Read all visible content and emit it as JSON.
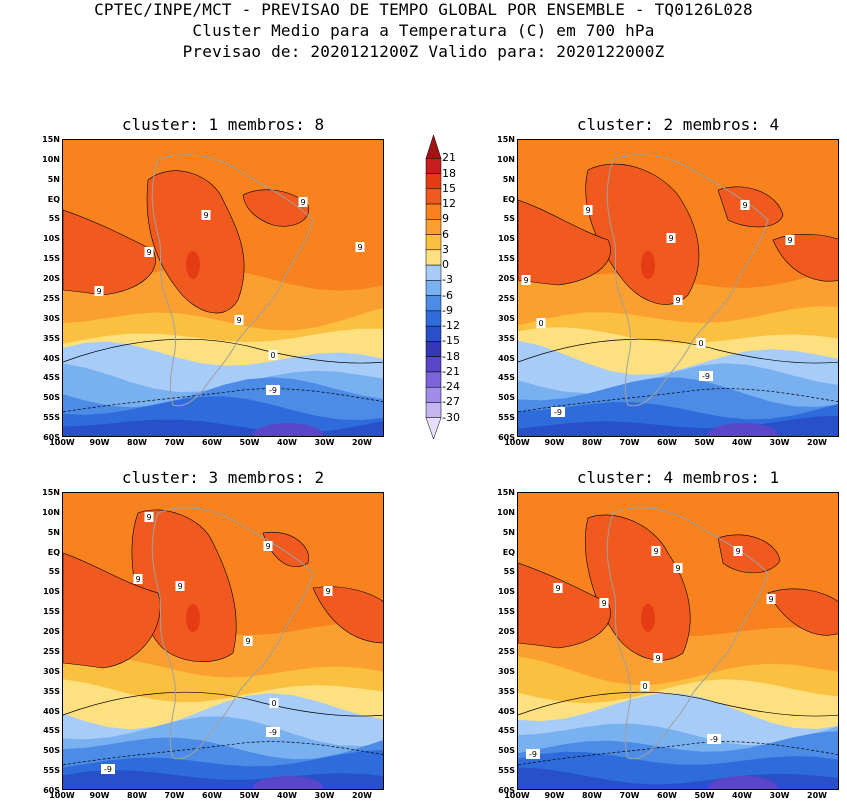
{
  "header": {
    "line1": "CPTEC/INPE/MCT - PREVISAO DE TEMPO GLOBAL POR ENSEMBLE - TQ0126L028",
    "line2": "Cluster Medio para a Temperatura (C) em 700 hPa",
    "line3": "Previsao de: 2020121200Z   Valido para: 2020122000Z"
  },
  "panels": [
    {
      "title": "cluster: 1  membros: 8",
      "contour_labels": [
        "9",
        "9",
        "9",
        "9",
        "9",
        "9",
        "0",
        "-9"
      ]
    },
    {
      "title": "cluster: 2  membros: 4",
      "contour_labels": [
        "9",
        "9",
        "9",
        "9",
        "9",
        "9",
        "0",
        "0",
        "-9",
        "-9"
      ]
    },
    {
      "title": "cluster: 3  membros: 2",
      "contour_labels": [
        "9",
        "9",
        "9",
        "9",
        "9",
        "9",
        "0",
        "-9",
        "-9"
      ]
    },
    {
      "title": "cluster: 4  membros: 1",
      "contour_labels": [
        "9",
        "9",
        "9",
        "9",
        "9",
        "9",
        "9",
        "0",
        "-9",
        "-9"
      ]
    }
  ],
  "y_axis": [
    "15N",
    "10N",
    "5N",
    "EQ",
    "5S",
    "10S",
    "15S",
    "20S",
    "25S",
    "30S",
    "35S",
    "40S",
    "45S",
    "50S",
    "55S",
    "60S"
  ],
  "x_axis": [
    "100W",
    "90W",
    "80W",
    "70W",
    "60W",
    "50W",
    "40W",
    "30W",
    "20W"
  ],
  "colorbar": {
    "labels": [
      "21",
      "18",
      "15",
      "12",
      "9",
      "6",
      "3",
      "0",
      "-3",
      "-6",
      "-9",
      "-12",
      "-15",
      "-18",
      "-21",
      "-24",
      "-27",
      "-30"
    ],
    "colors": [
      "#a01414",
      "#c81e1e",
      "#e63c14",
      "#f05a1e",
      "#f7821e",
      "#fba030",
      "#fcc040",
      "#fde080",
      "#a8ccf8",
      "#78b0f0",
      "#4c8ce6",
      "#2e6cdc",
      "#2850c8",
      "#3438b4",
      "#5a46c8",
      "#7c64dc",
      "#a08ce8",
      "#c4b4f0",
      "#e6defa"
    ]
  }
}
